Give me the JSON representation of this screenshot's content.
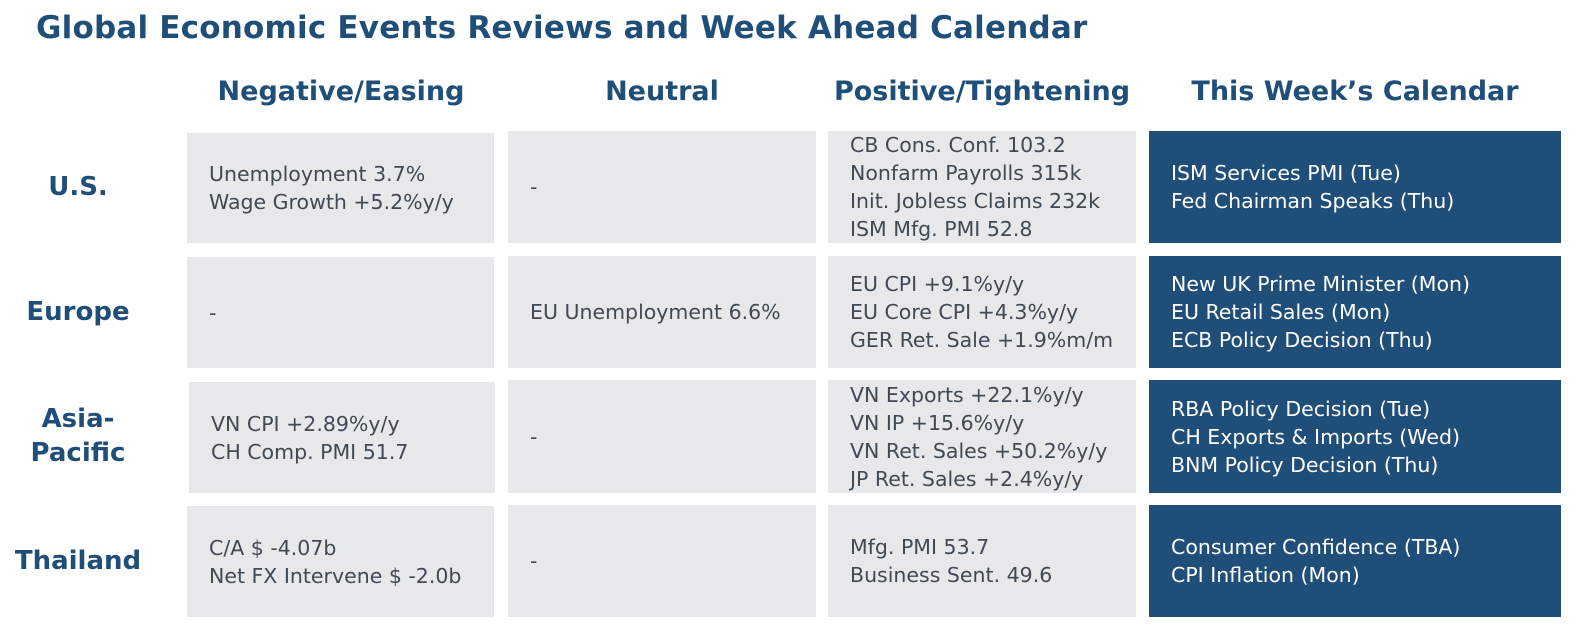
{
  "title": "Global Economic Events Reviews and Week Ahead Calendar",
  "columns": {
    "negative": "Negative/Easing",
    "neutral": "Neutral",
    "positive": "Positive/Tightening",
    "calendar": "This Week’s Calendar"
  },
  "rows": [
    {
      "label": "U.S.",
      "negative": [
        "Unemployment 3.7%",
        "Wage Growth +5.2%y/y"
      ],
      "neutral": [
        "-"
      ],
      "positive": [
        "CB Cons. Conf. 103.2",
        "Nonfarm Payrolls 315k",
        "Init. Jobless Claims 232k",
        "ISM Mfg. PMI 52.8"
      ],
      "calendar": [
        "ISM Services PMI (Tue)",
        "Fed  Chairman Speaks (Thu)"
      ]
    },
    {
      "label": "Europe",
      "negative": [
        "-"
      ],
      "neutral": [
        "EU Unemployment 6.6%"
      ],
      "positive": [
        "EU CPI +9.1%y/y",
        "EU Core CPI +4.3%y/y",
        "GER Ret. Sale +1.9%m/m"
      ],
      "calendar": [
        "New UK Prime Minister (Mon)",
        "EU Retail Sales (Mon)",
        "ECB Policy Decision (Thu)"
      ]
    },
    {
      "label_line1": "Asia-",
      "label_line2": "Pacific",
      "negative": [
        "VN CPI +2.89%y/y",
        "CH Comp. PMI 51.7"
      ],
      "neutral": [
        "-"
      ],
      "positive": [
        "VN Exports +22.1%y/y",
        "VN IP +15.6%y/y",
        "VN Ret. Sales +50.2%y/y",
        "JP Ret. Sales +2.4%y/y"
      ],
      "calendar": [
        "RBA Policy Decision (Tue)",
        "CH Exports & Imports  (Wed)",
        "BNM Policy Decision (Thu)"
      ]
    },
    {
      "label": "Thailand",
      "negative": [
        "C/A $ -4.07b",
        "Net FX Intervene $ -2.0b"
      ],
      "neutral": [
        "-"
      ],
      "positive": [
        "Mfg. PMI 53.7",
        "Business Sent. 49.6"
      ],
      "calendar": [
        "Consumer Confidence (TBA)",
        "CPI Inflation (Mon)"
      ]
    }
  ]
}
